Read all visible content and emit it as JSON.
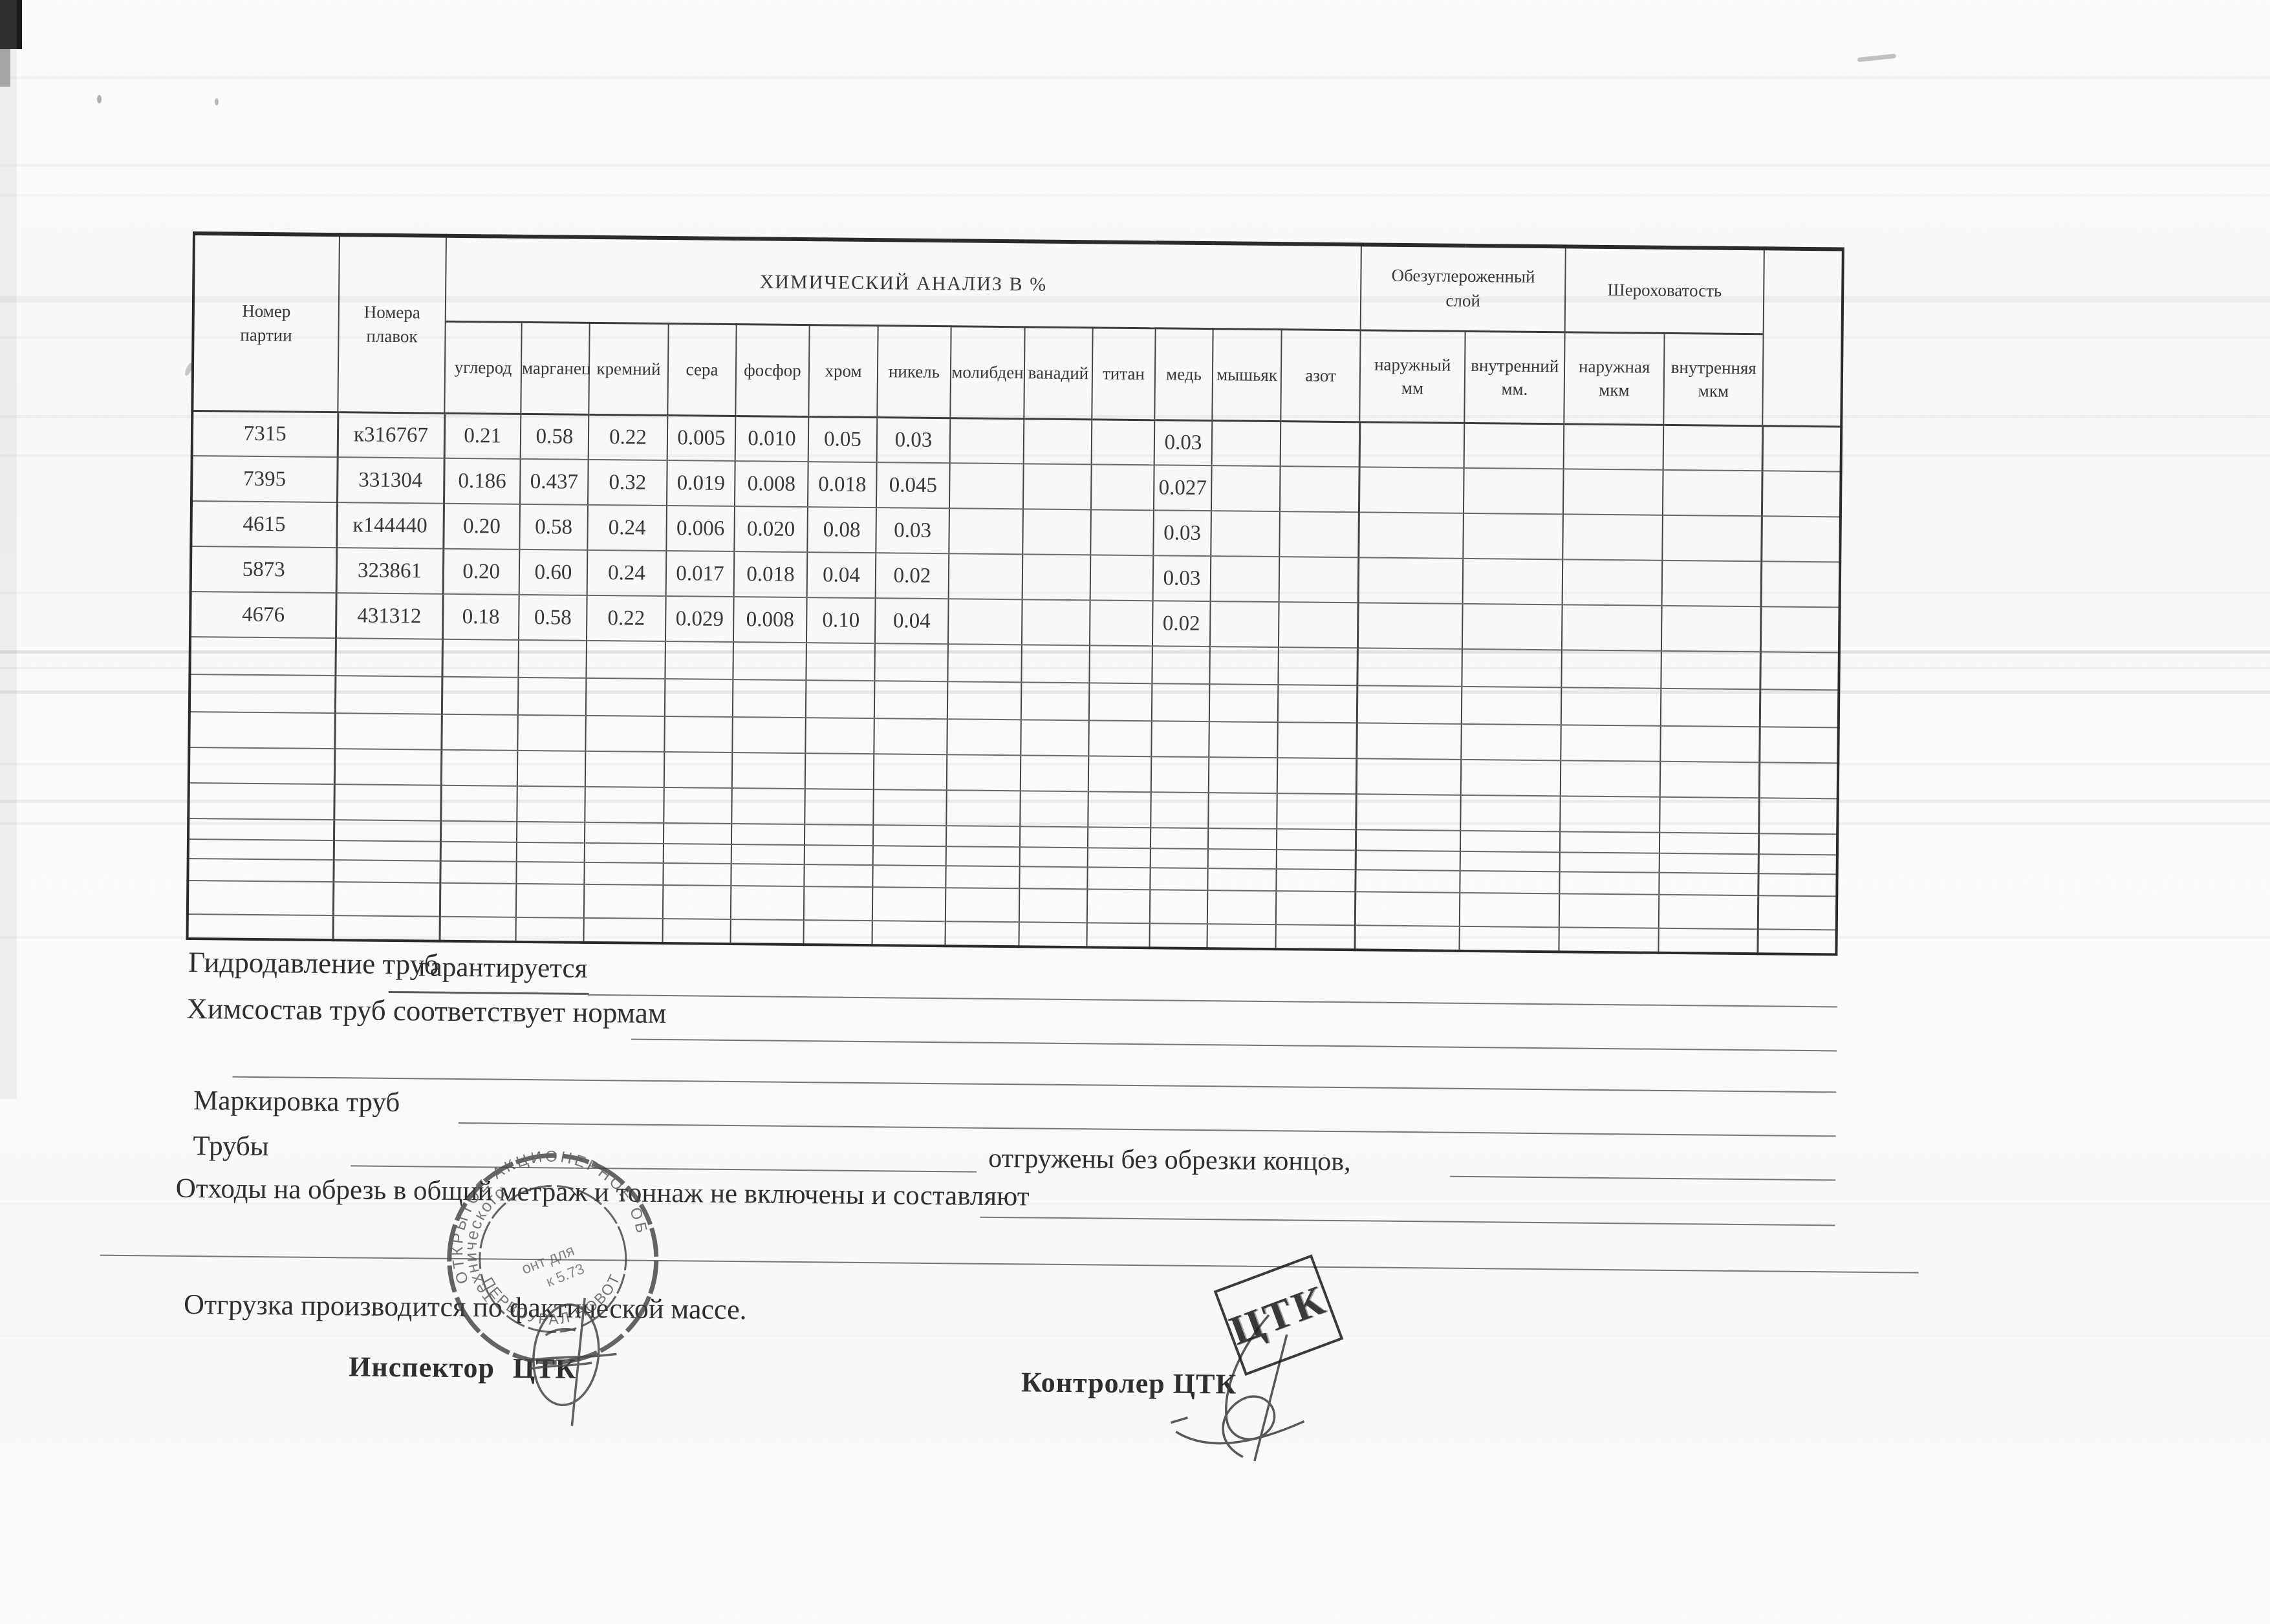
{
  "colors": {
    "ink": "#3a3a3a",
    "line": "#4a4a4a",
    "stamp": "#3f3f3f",
    "paper": "#fbfbfa"
  },
  "table": {
    "col_party": "Номер\nпартии",
    "col_melt": "Номера\nплавок",
    "title_chem": "ХИМИЧЕСКИЙ АНАЛИЗ  В   %",
    "group_decarb": "Обезуглероженный\nслой",
    "group_rough": "Шероховатость",
    "chem_cols": [
      "углерод",
      "марганец",
      "кремний",
      "сера",
      "фосфор",
      "хром",
      "никель",
      "молибден",
      "ванадий",
      "титан",
      "медь",
      "мышьяк",
      "азот"
    ],
    "chem_keys": [
      "uglerod",
      "marganec",
      "kremnij",
      "sera",
      "fosfor",
      "hrom",
      "nikel",
      "molibden",
      "vanadij",
      "titan",
      "med",
      "myshyak",
      "azot"
    ],
    "decarb_cols": [
      "наружный\nмм",
      "внутренний\nмм."
    ],
    "rough_cols": [
      "наружная\nмкм",
      "внутренняя\nмкм"
    ],
    "rows": [
      {
        "party": "7315",
        "melt": "к316767",
        "chem": [
          "0.21",
          "0.58",
          "0.22",
          "0.005",
          "0.010",
          "0.05",
          "0.03",
          "",
          "",
          "",
          "0.03",
          "",
          ""
        ]
      },
      {
        "party": "7395",
        "melt": "331304",
        "chem": [
          "0.186",
          "0.437",
          "0.32",
          "0.019",
          "0.008",
          "0.018",
          "0.045",
          "",
          "",
          "",
          "0.027",
          "",
          ""
        ]
      },
      {
        "party": "4615",
        "melt": "к144440",
        "chem": [
          "0.20",
          "0.58",
          "0.24",
          "0.006",
          "0.020",
          "0.08",
          "0.03",
          "",
          "",
          "",
          "0.03",
          "",
          ""
        ]
      },
      {
        "party": "5873",
        "melt": "323861",
        "chem": [
          "0.20",
          "0.60",
          "0.24",
          "0.017",
          "0.018",
          "0.04",
          "0.02",
          "",
          "",
          "",
          "0.03",
          "",
          ""
        ]
      },
      {
        "party": "4676",
        "melt": "431312",
        "chem": [
          "0.18",
          "0.58",
          "0.22",
          "0.029",
          "0.008",
          "0.10",
          "0.04",
          "",
          "",
          "",
          "0.02",
          "",
          ""
        ]
      }
    ],
    "empty_rows": [
      58,
      58,
      55,
      55,
      55,
      32,
      30,
      34,
      52,
      38
    ]
  },
  "form": {
    "hydro_label": "Гидродавление труб",
    "hydro_value": "гарантируется",
    "chem_label": "Химсостав труб соответствует нормам",
    "marking_label": "Маркировка труб",
    "pipes_label": "Трубы",
    "shipped_text": "отгружены без обрезки концов,",
    "waste_label": "Отходы на обрезь в общий метраж и тоннаж не включены и составляют",
    "shipping_label": "Отгрузка производится по фактической массе.",
    "inspector_label": "Инспектор ЦТК",
    "controller_label": "Контролер ЦТК"
  },
  "stamps": {
    "round_top": "ОТКРЫТОЕ АКЦИОНЕРНОЕ ОБЩ",
    "round_bottom": "ПЕРВОУРАЛ    НОВОТ",
    "round_inner_1": "технического",
    "round_inner_2": "онт  для",
    "round_inner_3": "к 5.73",
    "ctk_label": "ЦТК"
  }
}
